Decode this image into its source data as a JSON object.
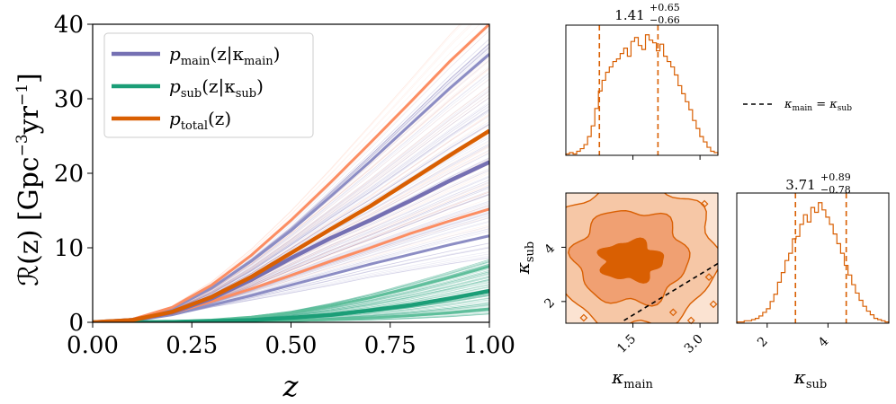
{
  "colors": {
    "main": "#7570b3",
    "sub": "#1b9e77",
    "total": "#d95f02",
    "total_band": "#fc8d62",
    "corner": "#d95f02"
  },
  "chart_data": [
    {
      "type": "line",
      "xlabel": "z",
      "ylabel": "R(z) [Gpc^-3 yr^-1]",
      "xlim": [
        0,
        1
      ],
      "ylim": [
        0,
        40
      ],
      "x_ticks": [
        "0.00",
        "0.25",
        "0.50",
        "0.75",
        "1.00"
      ],
      "y_ticks": [
        "0",
        "10",
        "20",
        "30",
        "40"
      ],
      "legend_position": "upper-left",
      "grid": false,
      "x": [
        0.0,
        0.1,
        0.2,
        0.3,
        0.4,
        0.5,
        0.6,
        0.7,
        0.8,
        0.9,
        1.0
      ],
      "series": [
        {
          "name": "p_main(z|κ_main)",
          "role": "median",
          "values": [
            0.0,
            0.3,
            1.3,
            3.2,
            5.7,
            8.6,
            11.3,
            13.7,
            16.3,
            19.0,
            21.5
          ]
        },
        {
          "name": "p_main(z|κ_main) upper",
          "role": "upper",
          "values": [
            0.0,
            0.4,
            1.8,
            4.6,
            8.2,
            12.3,
            16.9,
            21.6,
            26.5,
            31.4,
            36.0
          ]
        },
        {
          "name": "p_main(z|κ_main) lower",
          "role": "lower",
          "values": [
            0.0,
            0.2,
            1.0,
            2.3,
            3.6,
            5.0,
            6.4,
            7.8,
            9.1,
            10.4,
            11.6
          ]
        },
        {
          "name": "p_sub(z|κ_sub)",
          "role": "median",
          "values": [
            0.0,
            0.0,
            0.05,
            0.15,
            0.3,
            0.6,
            1.0,
            1.6,
            2.3,
            3.2,
            4.2
          ]
        },
        {
          "name": "p_sub(z|κ_sub) upper",
          "role": "upper",
          "values": [
            0.0,
            0.0,
            0.1,
            0.3,
            0.7,
            1.3,
            2.2,
            3.3,
            4.6,
            6.0,
            7.5
          ]
        },
        {
          "name": "p_sub(z|κ_sub) lower",
          "role": "lower",
          "values": [
            0.0,
            0.0,
            0.02,
            0.06,
            0.12,
            0.22,
            0.38,
            0.6,
            0.9,
            1.3,
            1.8
          ]
        },
        {
          "name": "p_total(z)",
          "role": "median",
          "values": [
            0.0,
            0.3,
            1.4,
            3.4,
            6.1,
            9.3,
            12.5,
            15.6,
            19.0,
            22.4,
            25.7
          ]
        },
        {
          "name": "p_total(z) upper",
          "role": "upper",
          "values": [
            0.0,
            0.4,
            2.0,
            5.0,
            9.0,
            13.7,
            18.8,
            24.1,
            29.5,
            35.0,
            40.0
          ]
        },
        {
          "name": "p_total(z) lower",
          "role": "lower",
          "values": [
            0.0,
            0.25,
            1.2,
            2.8,
            4.5,
            6.3,
            8.2,
            10.0,
            11.9,
            13.6,
            15.2
          ]
        }
      ]
    },
    {
      "type": "bar",
      "panel": "kappa_main marginal",
      "title_value": "1.41",
      "title_plus": "+0.65",
      "title_minus": "−0.66",
      "quantiles": [
        0.75,
        2.06
      ],
      "xlim": [
        0.0,
        3.4
      ],
      "bin_heights": [
        1,
        2,
        1,
        3,
        5,
        8,
        14,
        22,
        35,
        48,
        56,
        62,
        66,
        70,
        72,
        76,
        80,
        74,
        85,
        88,
        82,
        79,
        90,
        86,
        84,
        78,
        83,
        74,
        70,
        66,
        60,
        52,
        46,
        40,
        34,
        26,
        20,
        14,
        10,
        6,
        3,
        2
      ]
    },
    {
      "type": "bar",
      "panel": "kappa_sub marginal",
      "title_value": "3.71",
      "title_plus": "+0.89",
      "title_minus": "−0.78",
      "quantiles": [
        2.93,
        4.6
      ],
      "xlim": [
        1.0,
        6.0
      ],
      "x_ticks": [
        "2",
        "4"
      ],
      "bin_heights": [
        1,
        1,
        2,
        2,
        3,
        4,
        6,
        9,
        12,
        18,
        24,
        34,
        42,
        52,
        58,
        70,
        72,
        82,
        90,
        84,
        96,
        92,
        100,
        94,
        88,
        82,
        74,
        66,
        58,
        48,
        40,
        32,
        25,
        19,
        14,
        10,
        7,
        4,
        3,
        2,
        1
      ]
    },
    {
      "type": "heatmap",
      "panel": "2D posterior",
      "xlabel": "κ_main",
      "ylabel": "κ_sub",
      "x_ticks": [
        "1.5",
        "3.0"
      ],
      "y_ticks": [
        "2",
        "4"
      ],
      "xlim": [
        0.0,
        3.4
      ],
      "ylim": [
        1.2,
        6.0
      ],
      "reference_line": {
        "label": "κ_main = κ_sub",
        "style": "dashed",
        "points": [
          [
            1.3,
            1.3
          ],
          [
            3.4,
            3.4
          ]
        ]
      }
    }
  ],
  "legend": {
    "main_label": "p",
    "main_sub": "main",
    "main_args": "(z|κ",
    "main_args_sub": "main",
    "sub_label": "p",
    "sub_sub": "sub",
    "sub_args": "(z|κ",
    "sub_args_sub": "sub",
    "total_label": "p",
    "total_sub": "total",
    "total_args": "(z)"
  },
  "corner_legend": {
    "text_lhs": "κ",
    "lhs_sub": "main",
    "eq": " = κ",
    "rhs_sub": "sub"
  },
  "axes": {
    "y_label_main": "ℛ(z) [Gpc",
    "y_label_exp1": "−3",
    "y_label_mid": "yr",
    "y_label_exp2": "−1",
    "y_label_end": "]",
    "x_label": "z",
    "corner_x1": "κ",
    "corner_x1_sub": "main",
    "corner_x2": "κ",
    "corner_x2_sub": "sub",
    "corner_y": "κ",
    "corner_y_sub": "sub"
  }
}
